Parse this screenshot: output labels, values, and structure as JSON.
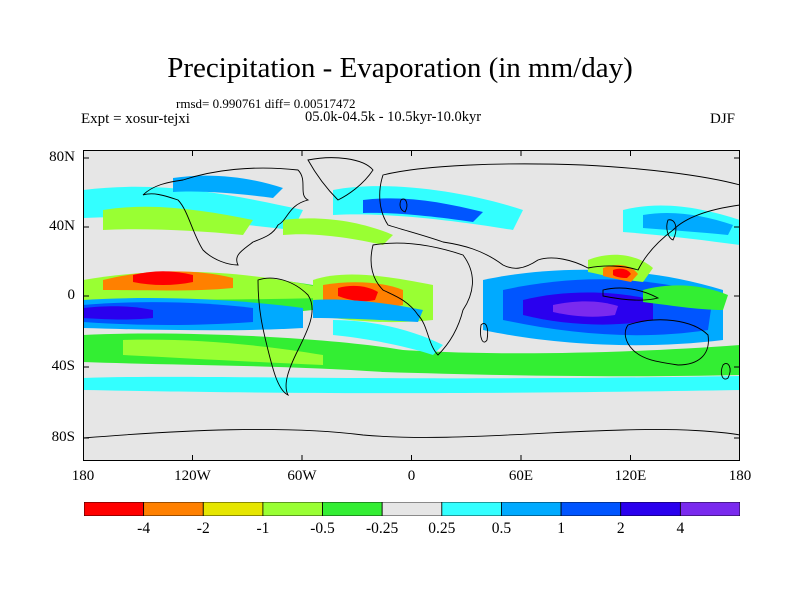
{
  "title": "Precipitation - Evaporation (in mm/day)",
  "stats_line": "rmsd= 0.990761 diff= 0.00517472",
  "period": "05.0k-04.5k - 10.5kyr-10.0kyr",
  "experiment": "Expt = xosur-tejxi",
  "season": "DJF",
  "lat_ticks": [
    "80N",
    "40N",
    "0",
    "40S",
    "80S"
  ],
  "lon_ticks": [
    "180",
    "120W",
    "60W",
    "0",
    "60E",
    "120E",
    "180"
  ],
  "colorbar": {
    "labels": [
      "-4",
      "-2",
      "-1",
      "-0.5",
      "-0.25",
      "0.25",
      "0.5",
      "1",
      "2",
      "4"
    ],
    "colors": [
      "#ff0000",
      "#ff8000",
      "#e6e600",
      "#99ff33",
      "#33ee33",
      "#e6e6e6",
      "#33ffff",
      "#00aaff",
      "#0055ff",
      "#2a00ee",
      "#7a2aee"
    ]
  },
  "map_colors": {
    "background": "#e6e6e6",
    "coastline": "#000000"
  }
}
